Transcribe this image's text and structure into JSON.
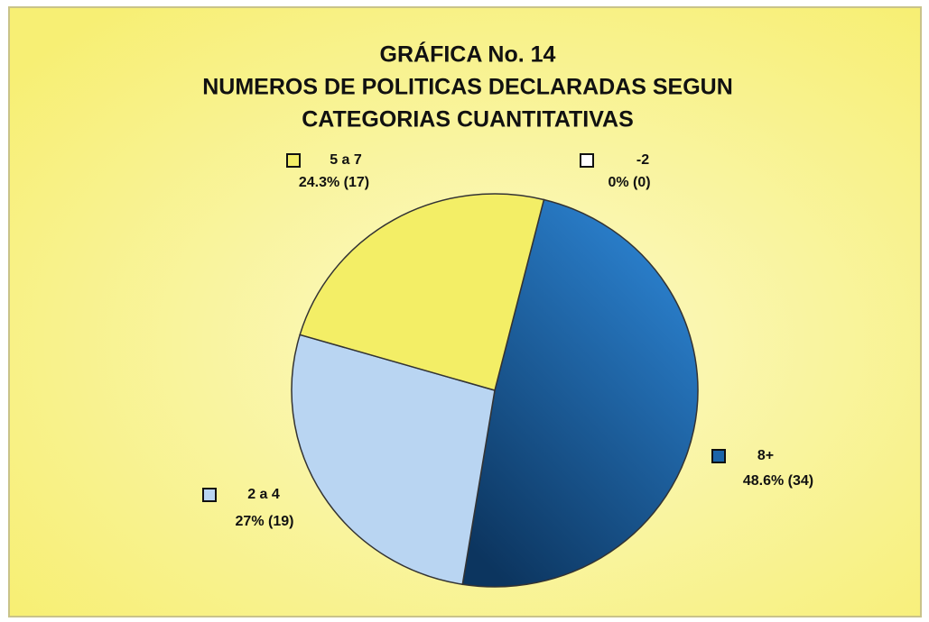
{
  "chart_data": {
    "type": "pie",
    "title": [
      "GRÁFICA No. 14",
      "NUMEROS DE POLITICAS DECLARADAS SEGUN",
      "CATEGORIAS CUANTITATIVAS"
    ],
    "categories": [
      "-2",
      "8+",
      "2 a 4",
      "5 a 7"
    ],
    "values": [
      0,
      48.6,
      27,
      24.3
    ],
    "value_labels": [
      "0% (0)",
      "48.6% (34)",
      "27% (19)",
      "24.3% (17)"
    ],
    "colors": [
      "#ffffff",
      "#1b64a8",
      "#b9d5f2",
      "#f3ee66"
    ]
  }
}
